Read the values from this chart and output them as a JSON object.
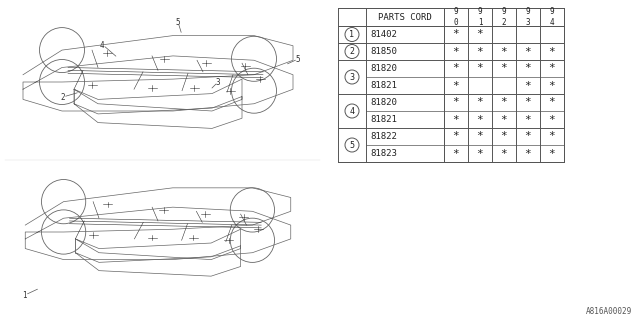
{
  "diagram_code": "A816A00029",
  "bg_color": "#ffffff",
  "table": {
    "header_col": "PARTS CORD",
    "year_cols": [
      "9\n0",
      "9\n1",
      "9\n2",
      "9\n3",
      "9\n4"
    ],
    "groups": [
      {
        "num": "1",
        "rows": [
          {
            "part": "81402",
            "marks": [
              true,
              true,
              false,
              false,
              false
            ]
          }
        ]
      },
      {
        "num": "2",
        "rows": [
          {
            "part": "81850",
            "marks": [
              true,
              true,
              true,
              true,
              true
            ]
          }
        ]
      },
      {
        "num": "3",
        "rows": [
          {
            "part": "81820",
            "marks": [
              true,
              true,
              true,
              true,
              true
            ]
          },
          {
            "part": "81821",
            "marks": [
              true,
              false,
              false,
              true,
              true
            ]
          }
        ]
      },
      {
        "num": "4",
        "rows": [
          {
            "part": "81820",
            "marks": [
              true,
              true,
              true,
              true,
              true
            ]
          },
          {
            "part": "81821",
            "marks": [
              true,
              true,
              true,
              true,
              true
            ]
          }
        ]
      },
      {
        "num": "5",
        "rows": [
          {
            "part": "81822",
            "marks": [
              true,
              true,
              true,
              true,
              true
            ]
          },
          {
            "part": "81823",
            "marks": [
              true,
              true,
              true,
              true,
              true
            ]
          }
        ]
      }
    ]
  }
}
